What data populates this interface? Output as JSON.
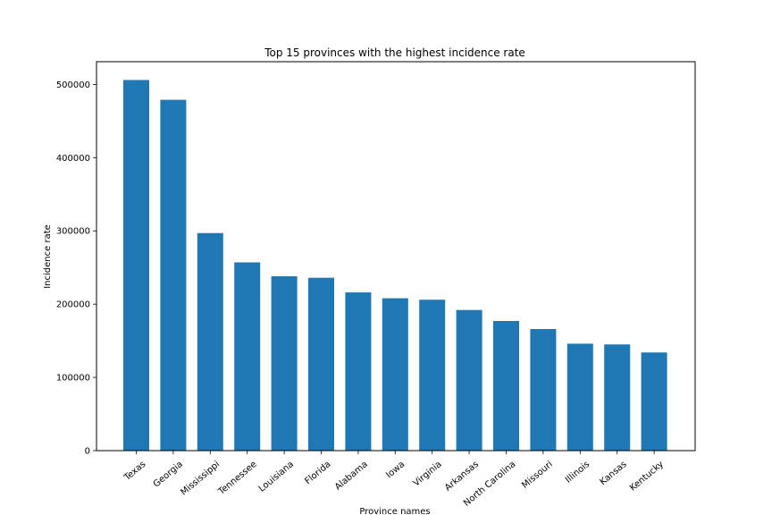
{
  "chart_data": {
    "type": "bar",
    "title": "Top 15 provinces with the highest incidence rate",
    "xlabel": "Province names",
    "ylabel": "Incidence rate",
    "categories": [
      "Texas",
      "Georgia",
      "Mississippi",
      "Tennessee",
      "Louisiana",
      "Florida",
      "Alabama",
      "Iowa",
      "Virginia",
      "Arkansas",
      "North Carolina",
      "Missouri",
      "Illinois",
      "Kansas",
      "Kentucky"
    ],
    "values": [
      506000,
      479000,
      297000,
      257000,
      238000,
      236000,
      216000,
      208000,
      206000,
      192000,
      177000,
      166000,
      146000,
      145000,
      134000
    ],
    "yticks": [
      0,
      100000,
      200000,
      300000,
      400000,
      500000
    ],
    "ylim": [
      0,
      531000
    ],
    "bar_color": "#1f77b4",
    "grid": false,
    "legend": "none"
  }
}
